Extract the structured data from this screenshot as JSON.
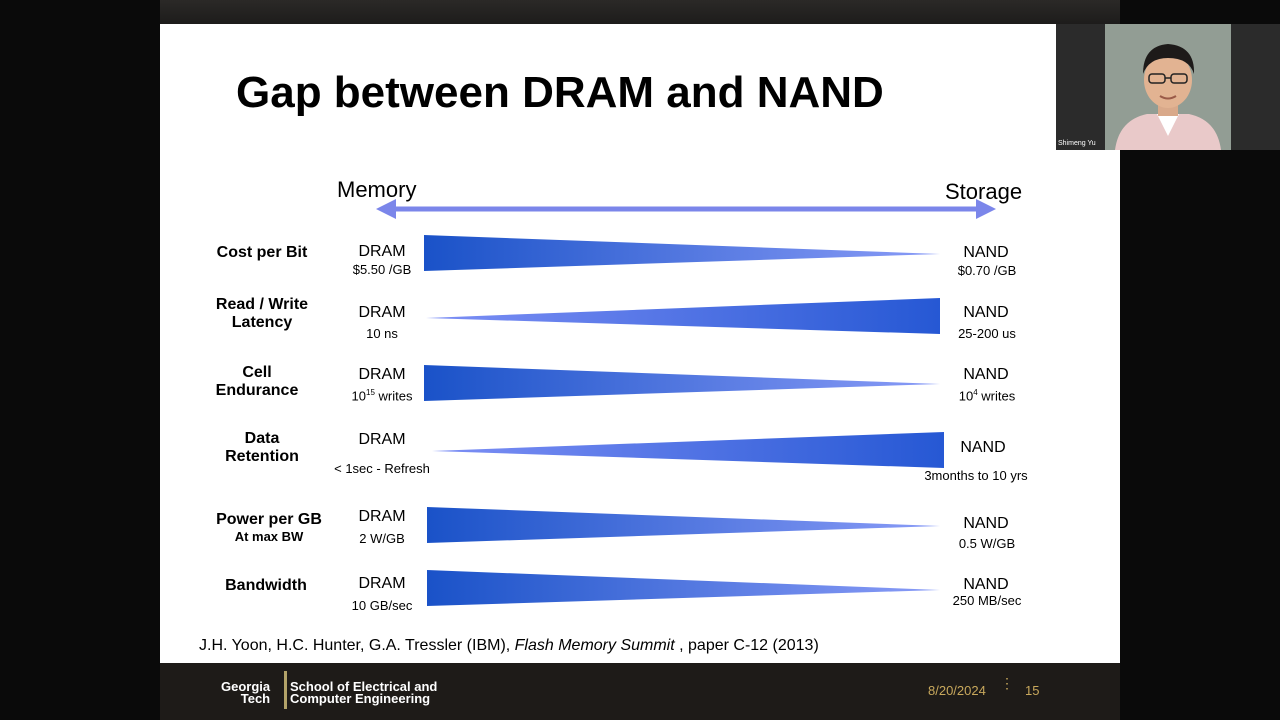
{
  "slide": {
    "title": "Gap between DRAM and NAND",
    "axis": {
      "left": "Memory",
      "right": "Storage"
    },
    "rows": [
      {
        "label_lines": [
          "Cost per Bit"
        ],
        "sub": "",
        "left_name": "DRAM",
        "left_value": "$5.50 /GB",
        "right_name": "NAND",
        "right_value": "$0.70 /GB"
      },
      {
        "label_lines": [
          "Read / Write",
          "Latency"
        ],
        "sub": "",
        "left_name": "DRAM",
        "left_value": "10 ns",
        "right_name": "NAND",
        "right_value": "25-200 us"
      },
      {
        "label_lines": [
          "Cell",
          "Endurance"
        ],
        "sub": "",
        "left_name": "DRAM",
        "left_value_base": "10",
        "left_value_exp": "15",
        "left_value_rest": " writes",
        "right_name": "NAND",
        "right_value_base": "10",
        "right_value_exp": "4",
        "right_value_rest": " writes"
      },
      {
        "label_lines": [
          "Data",
          "Retention"
        ],
        "sub": "",
        "left_name": "DRAM",
        "left_value": "< 1sec - Refresh",
        "right_name": "NAND",
        "right_value": "3months to 10 yrs"
      },
      {
        "label_lines": [
          "Power per GB"
        ],
        "sub": "At max BW",
        "left_name": "DRAM",
        "left_value": "2 W/GB",
        "right_name": "NAND",
        "right_value": "0.5 W/GB"
      },
      {
        "label_lines": [
          "Bandwidth"
        ],
        "sub": "",
        "left_name": "DRAM",
        "left_value": "10 GB/sec",
        "right_name": "NAND",
        "right_value": "250 MB/sec"
      }
    ],
    "citation": {
      "authors": "J.H. Yoon, H.C. Hunter, G.A. Tressler (IBM), ",
      "venue": "Flash Memory Summit",
      "rest": " , paper C-12 (2013)"
    }
  },
  "footer": {
    "logo_top": "Georgia",
    "logo_bottom": "Tech",
    "school_line1": "School of Electrical and",
    "school_line2": "Computer Engineering",
    "date": "8/20/2024",
    "separator": "⋮",
    "slide_number": "15"
  },
  "video": {
    "participant_name": "Shimeng Yu"
  },
  "colors": {
    "wedge_dark": "#1a52c8",
    "wedge_light": "#7d8ff5",
    "arrow": "#7b86ea",
    "accent_gold": "#c8a85c"
  }
}
